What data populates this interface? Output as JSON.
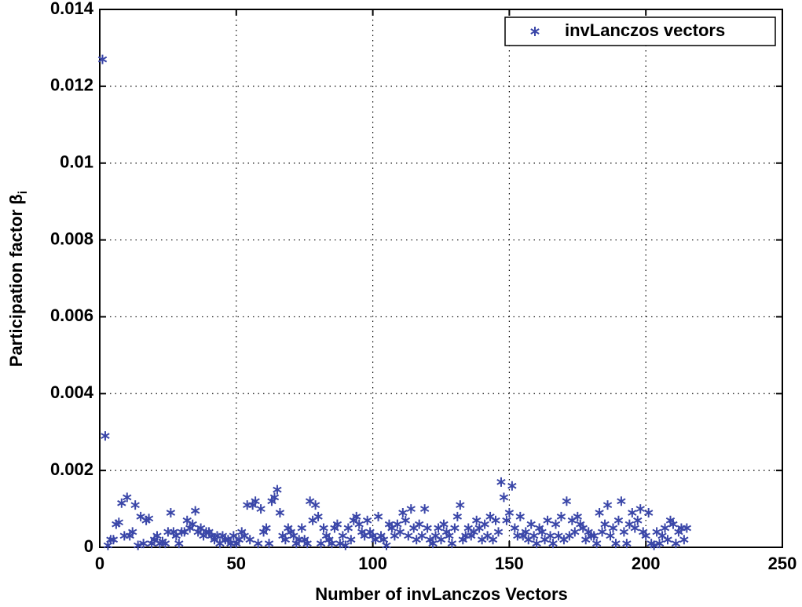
{
  "chart_data": {
    "type": "scatter",
    "xlabel": "Number of invLanczos Vectors",
    "ylabel": "Participation factor β",
    "ylabel_subscript": "i",
    "xlim": [
      0,
      250
    ],
    "xticks": [
      0,
      50,
      100,
      150,
      200,
      250
    ],
    "ylim": [
      0,
      0.014
    ],
    "yticks": [
      0,
      0.002,
      0.004,
      0.006,
      0.008,
      0.01,
      0.012,
      0.014
    ],
    "grid": true,
    "legend": "upper right",
    "series": [
      {
        "name": "invLanczos vectors",
        "color": "#3a46a8",
        "x": [
          1,
          2,
          3,
          4,
          5,
          6,
          7,
          8,
          9,
          10,
          11,
          12,
          13,
          14,
          15,
          16,
          17,
          18,
          19,
          20,
          21,
          22,
          23,
          24,
          25,
          26,
          27,
          28,
          29,
          30,
          31,
          32,
          33,
          34,
          35,
          36,
          37,
          38,
          39,
          40,
          41,
          42,
          43,
          44,
          45,
          46,
          47,
          48,
          49,
          50,
          51,
          52,
          53,
          54,
          55,
          56,
          57,
          58,
          59,
          60,
          61,
          62,
          63,
          64,
          65,
          66,
          67,
          68,
          69,
          70,
          71,
          72,
          73,
          74,
          75,
          76,
          77,
          78,
          79,
          80,
          81,
          82,
          83,
          84,
          85,
          86,
          87,
          88,
          89,
          90,
          91,
          92,
          93,
          94,
          95,
          96,
          97,
          98,
          99,
          100,
          101,
          102,
          103,
          104,
          105,
          106,
          107,
          108,
          109,
          110,
          111,
          112,
          113,
          114,
          115,
          116,
          117,
          118,
          119,
          120,
          121,
          122,
          123,
          124,
          125,
          126,
          127,
          128,
          129,
          130,
          131,
          132,
          133,
          134,
          135,
          136,
          137,
          138,
          139,
          140,
          141,
          142,
          143,
          144,
          145,
          146,
          147,
          148,
          149,
          150,
          151,
          152,
          153,
          154,
          155,
          156,
          157,
          158,
          159,
          160,
          161,
          162,
          163,
          164,
          165,
          166,
          167,
          168,
          169,
          170,
          171,
          172,
          173,
          174,
          175,
          176,
          177,
          178,
          179,
          180,
          181,
          182,
          183,
          184,
          185,
          186,
          187,
          188,
          189,
          190,
          191,
          192,
          193,
          194,
          195,
          196,
          197,
          198,
          199,
          200,
          201,
          202,
          203,
          204,
          205,
          206,
          207,
          208,
          209,
          210,
          211,
          212,
          213,
          214,
          215
        ],
        "values": [
          0.0127,
          0.0029,
          5e-05,
          0.0002,
          0.0002,
          0.0006,
          0.00065,
          0.00115,
          0.0003,
          0.0013,
          0.0003,
          0.0004,
          0.0011,
          5e-05,
          0.0008,
          0.0001,
          0.0007,
          0.00075,
          0.0001,
          0.0002,
          0.0003,
          0.0001,
          0.00015,
          0.0001,
          0.0004,
          0.0009,
          0.0004,
          0.0003,
          0.0001,
          0.0004,
          0.0004,
          0.0007,
          0.0005,
          0.0006,
          0.00095,
          0.0004,
          0.0005,
          0.0003,
          0.0004,
          0.0004,
          0.0003,
          0.0002,
          0.0003,
          0.0001,
          0.0003,
          0.0002,
          0.0002,
          0.0001,
          0.0003,
          0.0001,
          0.0002,
          0.0004,
          0.0003,
          0.0011,
          0.0002,
          0.0011,
          0.0012,
          0.0001,
          0.001,
          0.0004,
          0.0005,
          0.0001,
          0.0012,
          0.0013,
          0.0015,
          0.0009,
          0.0003,
          0.0002,
          0.0005,
          0.0004,
          0.0003,
          0.0001,
          0.0002,
          0.0005,
          0.0002,
          0.0001,
          0.0012,
          0.0007,
          0.0011,
          0.0008,
          0.0001,
          0.0005,
          0.0003,
          0.0002,
          0.0001,
          0.0005,
          0.0006,
          0.0001,
          0.0003,
          5e-05,
          0.0005,
          0.0002,
          0.0007,
          0.0008,
          0.0006,
          0.0004,
          0.0003,
          0.0007,
          0.0004,
          0.0003,
          0.0002,
          0.0008,
          0.0003,
          0.0002,
          5e-05,
          0.0006,
          0.0005,
          0.0003,
          0.0006,
          0.0004,
          0.0009,
          0.0007,
          0.0003,
          0.001,
          0.0005,
          0.0002,
          0.0006,
          0.0003,
          0.001,
          0.0005,
          0.0002,
          0.0001,
          0.0003,
          0.0005,
          0.0002,
          0.0006,
          0.0004,
          0.0003,
          0.0001,
          0.0005,
          0.0008,
          0.0011,
          0.0002,
          0.0003,
          0.0005,
          0.0003,
          0.0004,
          0.0007,
          0.0005,
          0.0002,
          0.0006,
          0.0003,
          0.0008,
          0.0002,
          0.0007,
          0.0004,
          0.0017,
          0.0013,
          0.0007,
          0.0009,
          0.0016,
          0.0005,
          0.0003,
          0.0008,
          0.0003,
          0.0004,
          0.0002,
          0.0006,
          0.0003,
          0.0001,
          0.0005,
          0.0004,
          0.0002,
          0.0007,
          0.0003,
          0.0001,
          0.0006,
          0.0003,
          0.0008,
          0.0002,
          0.0012,
          0.0003,
          0.0007,
          0.0004,
          0.0008,
          0.0006,
          0.0005,
          0.0002,
          0.0004,
          0.0003,
          0.0003,
          0.0001,
          0.0009,
          0.0004,
          0.0006,
          0.0011,
          0.0003,
          0.0005,
          0.0001,
          0.0007,
          0.0012,
          0.0004,
          0.0001,
          0.0006,
          0.0009,
          0.0005,
          0.0007,
          0.001,
          0.0004,
          0.0003,
          0.0009,
          0.0001,
          5e-05,
          0.0004,
          0.0001,
          0.0003,
          0.0005,
          0.0002,
          0.0007,
          0.0006,
          0.0001,
          0.0004,
          0.0005,
          0.0002,
          0.0005
        ]
      }
    ]
  }
}
